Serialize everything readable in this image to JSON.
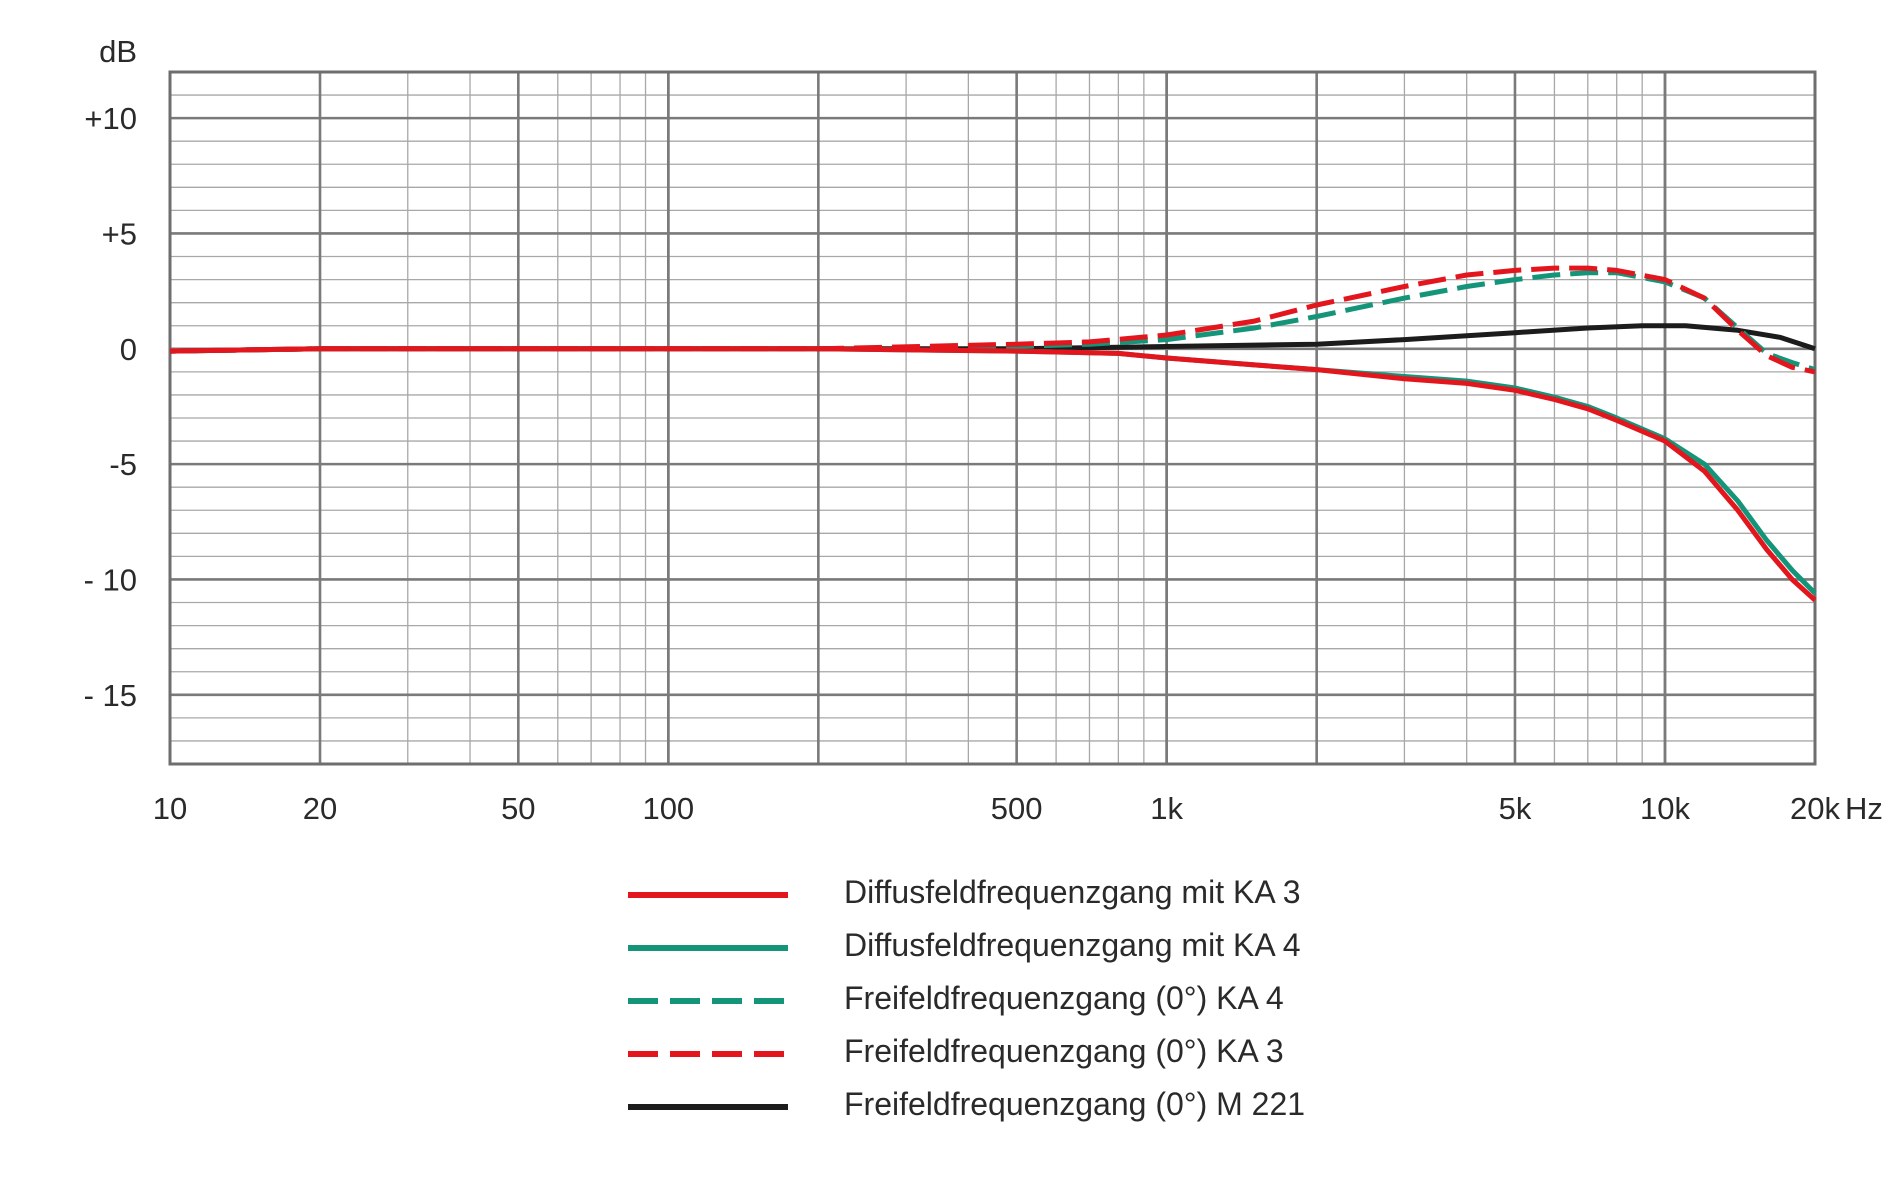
{
  "chart_data": {
    "type": "line",
    "x_scale": "log",
    "xlim": [
      10,
      20000
    ],
    "ylim": [
      -18,
      12
    ],
    "grid": true,
    "legend_position": "bottom",
    "ylabel": "dB",
    "xunit": "Hz",
    "y_ticks": [
      {
        "value": 10,
        "label": "+10"
      },
      {
        "value": 5,
        "label": "+5"
      },
      {
        "value": 0,
        "label": "0"
      },
      {
        "value": -5,
        "label": "-5"
      },
      {
        "value": -10,
        "label": "- 10"
      },
      {
        "value": -15,
        "label": "- 15"
      }
    ],
    "x_ticks": [
      {
        "value": 10,
        "label": "10"
      },
      {
        "value": 20,
        "label": "20"
      },
      {
        "value": 50,
        "label": "50"
      },
      {
        "value": 100,
        "label": "100"
      },
      {
        "value": 500,
        "label": "500"
      },
      {
        "value": 1000,
        "label": "1k"
      },
      {
        "value": 5000,
        "label": "5k"
      },
      {
        "value": 10000,
        "label": "10k"
      },
      {
        "value": 20000,
        "label": "20k"
      }
    ],
    "series": [
      {
        "name": "Diffusfeldfrequenzgang mit KA 3",
        "color": "#e3161d",
        "dash": "solid",
        "points": [
          [
            10,
            -0.1
          ],
          [
            20,
            0
          ],
          [
            50,
            0
          ],
          [
            100,
            0
          ],
          [
            200,
            0
          ],
          [
            500,
            -0.1
          ],
          [
            800,
            -0.2
          ],
          [
            1000,
            -0.4
          ],
          [
            1500,
            -0.7
          ],
          [
            2000,
            -0.9
          ],
          [
            3000,
            -1.3
          ],
          [
            4000,
            -1.5
          ],
          [
            5000,
            -1.8
          ],
          [
            6000,
            -2.2
          ],
          [
            7000,
            -2.6
          ],
          [
            8000,
            -3.1
          ],
          [
            10000,
            -4.0
          ],
          [
            12000,
            -5.3
          ],
          [
            14000,
            -7.0
          ],
          [
            16000,
            -8.7
          ],
          [
            18000,
            -10.0
          ],
          [
            20000,
            -10.9
          ]
        ]
      },
      {
        "name": "Diffusfeldfrequenzgang mit KA 4",
        "color": "#14957a",
        "dash": "solid",
        "points": [
          [
            10,
            -0.1
          ],
          [
            20,
            0
          ],
          [
            50,
            0
          ],
          [
            100,
            0
          ],
          [
            200,
            0
          ],
          [
            500,
            -0.1
          ],
          [
            800,
            -0.2
          ],
          [
            1000,
            -0.4
          ],
          [
            1500,
            -0.7
          ],
          [
            2000,
            -0.9
          ],
          [
            3000,
            -1.2
          ],
          [
            4000,
            -1.4
          ],
          [
            5000,
            -1.7
          ],
          [
            6000,
            -2.1
          ],
          [
            7000,
            -2.5
          ],
          [
            8000,
            -3.0
          ],
          [
            10000,
            -3.9
          ],
          [
            12000,
            -5.0
          ],
          [
            14000,
            -6.6
          ],
          [
            16000,
            -8.3
          ],
          [
            18000,
            -9.6
          ],
          [
            20000,
            -10.6
          ]
        ]
      },
      {
        "name": "Freifeldfrequenzgang (0°) KA 4",
        "color": "#14957a",
        "dash": "dashed",
        "points": [
          [
            10,
            -0.1
          ],
          [
            20,
            0
          ],
          [
            50,
            0
          ],
          [
            100,
            0
          ],
          [
            200,
            0
          ],
          [
            500,
            0.1
          ],
          [
            700,
            0.2
          ],
          [
            1000,
            0.4
          ],
          [
            1500,
            0.9
          ],
          [
            2000,
            1.4
          ],
          [
            3000,
            2.2
          ],
          [
            4000,
            2.7
          ],
          [
            5000,
            3.0
          ],
          [
            6000,
            3.2
          ],
          [
            7000,
            3.3
          ],
          [
            8000,
            3.3
          ],
          [
            10000,
            2.9
          ],
          [
            12000,
            2.2
          ],
          [
            14000,
            0.9
          ],
          [
            16000,
            -0.2
          ],
          [
            18000,
            -0.6
          ],
          [
            20000,
            -0.9
          ]
        ]
      },
      {
        "name": "Freifeldfrequenzgang (0°) KA 3",
        "color": "#e3161d",
        "dash": "dashed",
        "points": [
          [
            10,
            -0.1
          ],
          [
            20,
            0
          ],
          [
            50,
            0
          ],
          [
            100,
            0
          ],
          [
            200,
            0
          ],
          [
            500,
            0.2
          ],
          [
            700,
            0.3
          ],
          [
            1000,
            0.6
          ],
          [
            1500,
            1.2
          ],
          [
            2000,
            1.9
          ],
          [
            3000,
            2.7
          ],
          [
            4000,
            3.2
          ],
          [
            5000,
            3.4
          ],
          [
            6000,
            3.5
          ],
          [
            7000,
            3.5
          ],
          [
            8000,
            3.4
          ],
          [
            10000,
            3.0
          ],
          [
            12000,
            2.2
          ],
          [
            14000,
            0.8
          ],
          [
            16000,
            -0.3
          ],
          [
            18000,
            -0.8
          ],
          [
            20000,
            -1.0
          ]
        ]
      },
      {
        "name": "Freifeldfrequenzgang (0°) M 221",
        "color": "#1c1c1c",
        "dash": "solid",
        "points": [
          [
            10,
            -0.1
          ],
          [
            20,
            0
          ],
          [
            50,
            0
          ],
          [
            100,
            0
          ],
          [
            200,
            0
          ],
          [
            500,
            0
          ],
          [
            1000,
            0.1
          ],
          [
            2000,
            0.2
          ],
          [
            3000,
            0.4
          ],
          [
            5000,
            0.7
          ],
          [
            7000,
            0.9
          ],
          [
            9000,
            1.0
          ],
          [
            11000,
            1.0
          ],
          [
            14000,
            0.8
          ],
          [
            17000,
            0.5
          ],
          [
            20000,
            0
          ]
        ]
      }
    ]
  }
}
